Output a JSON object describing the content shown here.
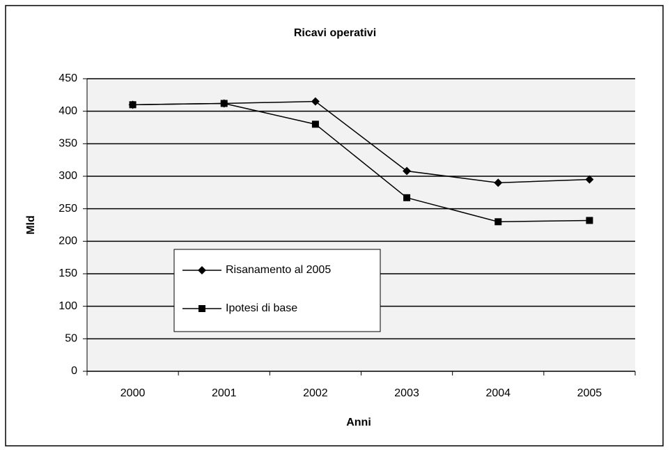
{
  "chart_data": {
    "type": "line",
    "title": "Ricavi operativi",
    "x_label": "Anni",
    "y_label": "Mld",
    "categories": [
      "2000",
      "2001",
      "2002",
      "2003",
      "2004",
      "2005"
    ],
    "series": [
      {
        "name": "Risanamento al 2005",
        "color": "#000000",
        "marker": "diamond",
        "values": [
          410,
          412,
          415,
          308,
          290,
          295
        ]
      },
      {
        "name": "Ipotesi di base",
        "color": "#000000",
        "marker": "square",
        "values": [
          410,
          412,
          380,
          267,
          230,
          232
        ]
      }
    ],
    "ylim": [
      0,
      450
    ],
    "yticks": [
      0,
      50,
      100,
      150,
      200,
      250,
      300,
      350,
      400,
      450
    ],
    "grid": true
  }
}
